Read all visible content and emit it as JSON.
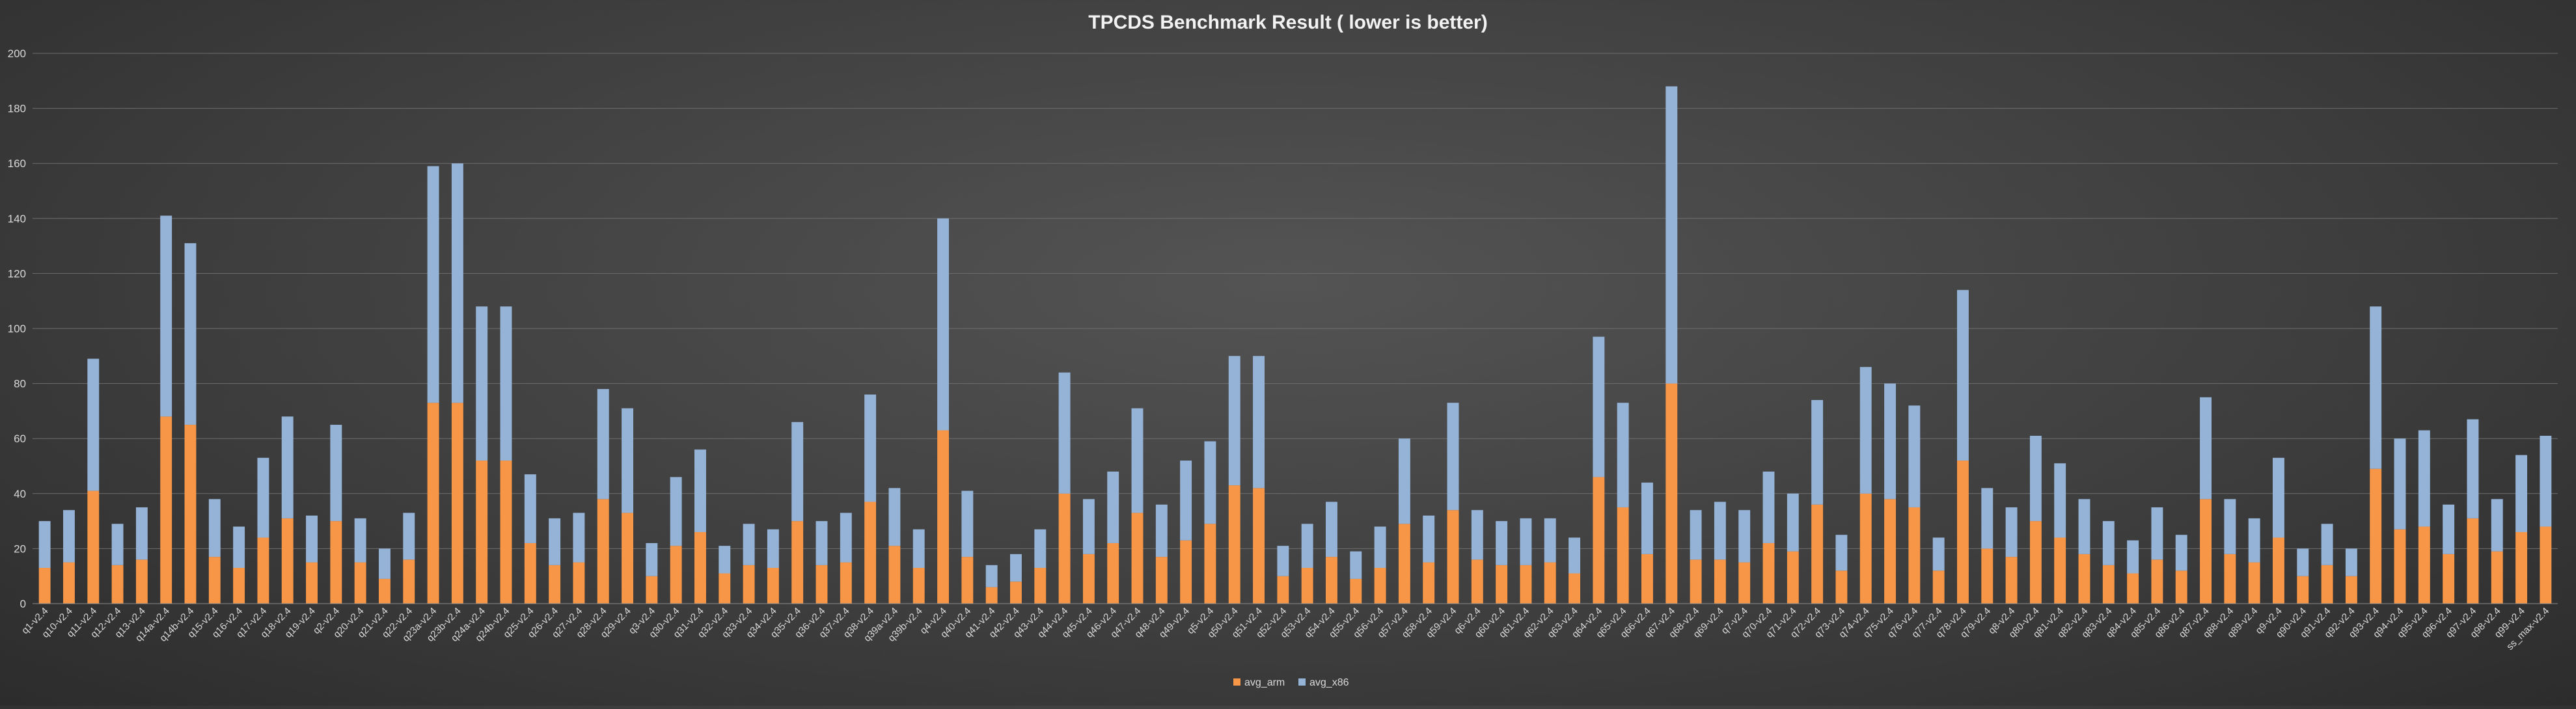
{
  "chart_data": {
    "type": "bar",
    "stacked": true,
    "title": "TPCDS Benchmark Result ( lower is better)",
    "xlabel": "",
    "ylabel": "",
    "ylim": [
      0,
      200
    ],
    "yticks": [
      0,
      20,
      40,
      60,
      80,
      100,
      120,
      140,
      160,
      180,
      200
    ],
    "grid": true,
    "legend_position": "bottom",
    "categories": [
      "q1-v2.4",
      "q10-v2.4",
      "q11-v2.4",
      "q12-v2.4",
      "q13-v2.4",
      "q14a-v2.4",
      "q14b-v2.4",
      "q15-v2.4",
      "q16-v2.4",
      "q17-v2.4",
      "q18-v2.4",
      "q19-v2.4",
      "q2-v2.4",
      "q20-v2.4",
      "q21-v2.4",
      "q22-v2.4",
      "q23a-v2.4",
      "q23b-v2.4",
      "q24a-v2.4",
      "q24b-v2.4",
      "q25-v2.4",
      "q26-v2.4",
      "q27-v2.4",
      "q28-v2.4",
      "q29-v2.4",
      "q3-v2.4",
      "q30-v2.4",
      "q31-v2.4",
      "q32-v2.4",
      "q33-v2.4",
      "q34-v2.4",
      "q35-v2.4",
      "q36-v2.4",
      "q37-v2.4",
      "q38-v2.4",
      "q39a-v2.4",
      "q39b-v2.4",
      "q4-v2.4",
      "q40-v2.4",
      "q41-v2.4",
      "q42-v2.4",
      "q43-v2.4",
      "q44-v2.4",
      "q45-v2.4",
      "q46-v2.4",
      "q47-v2.4",
      "q48-v2.4",
      "q49-v2.4",
      "q5-v2.4",
      "q50-v2.4",
      "q51-v2.4",
      "q52-v2.4",
      "q53-v2.4",
      "q54-v2.4",
      "q55-v2.4",
      "q56-v2.4",
      "q57-v2.4",
      "q58-v2.4",
      "q59-v2.4",
      "q6-v2.4",
      "q60-v2.4",
      "q61-v2.4",
      "q62-v2.4",
      "q63-v2.4",
      "q64-v2.4",
      "q65-v2.4",
      "q66-v2.4",
      "q67-v2.4",
      "q68-v2.4",
      "q69-v2.4",
      "q7-v2.4",
      "q70-v2.4",
      "q71-v2.4",
      "q72-v2.4",
      "q73-v2.4",
      "q74-v2.4",
      "q75-v2.4",
      "q76-v2.4",
      "q77-v2.4",
      "q78-v2.4",
      "q79-v2.4",
      "q8-v2.4",
      "q80-v2.4",
      "q81-v2.4",
      "q82-v2.4",
      "q83-v2.4",
      "q84-v2.4",
      "q85-v2.4",
      "q86-v2.4",
      "q87-v2.4",
      "q88-v2.4",
      "q89-v2.4",
      "q9-v2.4",
      "q90-v2.4",
      "q91-v2.4",
      "q92-v2.4",
      "q93-v2.4",
      "q94-v2.4",
      "q95-v2.4",
      "q96-v2.4",
      "q97-v2.4",
      "q98-v2.4",
      "q99-v2.4",
      "ss_max-v2.4"
    ],
    "series": [
      {
        "name": "avg_arm",
        "color": "#f79646",
        "values": [
          13,
          15,
          41,
          14,
          16,
          68,
          65,
          17,
          13,
          24,
          31,
          15,
          30,
          15,
          9,
          16,
          73,
          73,
          52,
          52,
          22,
          14,
          15,
          38,
          33,
          10,
          21,
          26,
          11,
          14,
          13,
          30,
          14,
          15,
          37,
          21,
          13,
          63,
          17,
          6,
          8,
          13,
          40,
          18,
          22,
          33,
          17,
          23,
          29,
          43,
          42,
          10,
          13,
          17,
          9,
          13,
          29,
          15,
          34,
          16,
          14,
          14,
          15,
          11,
          46,
          35,
          18,
          80,
          16,
          16,
          15,
          22,
          19,
          36,
          12,
          40,
          38,
          35,
          12,
          52,
          20,
          17,
          30,
          24,
          18,
          14,
          11,
          16,
          12,
          38,
          18,
          15,
          24,
          10,
          14,
          10,
          49,
          27,
          28,
          18,
          31,
          19,
          26,
          28
        ]
      },
      {
        "name": "avg_x86",
        "color": "#95b3d7",
        "values": [
          17,
          19,
          48,
          15,
          19,
          73,
          66,
          21,
          15,
          29,
          37,
          17,
          35,
          16,
          11,
          17,
          86,
          87,
          56,
          56,
          25,
          17,
          18,
          40,
          38,
          12,
          25,
          30,
          10,
          15,
          14,
          36,
          16,
          18,
          39,
          21,
          14,
          77,
          24,
          8,
          10,
          14,
          44,
          20,
          26,
          38,
          19,
          29,
          30,
          47,
          48,
          11,
          16,
          20,
          10,
          15,
          31,
          17,
          39,
          18,
          16,
          17,
          16,
          13,
          51,
          38,
          26,
          108,
          18,
          21,
          19,
          26,
          21,
          38,
          13,
          46,
          42,
          37,
          12,
          62,
          22,
          18,
          31,
          27,
          20,
          16,
          12,
          19,
          13,
          37,
          20,
          16,
          29,
          10,
          15,
          10,
          59,
          33,
          35,
          18,
          36,
          19,
          28,
          33
        ]
      }
    ]
  }
}
